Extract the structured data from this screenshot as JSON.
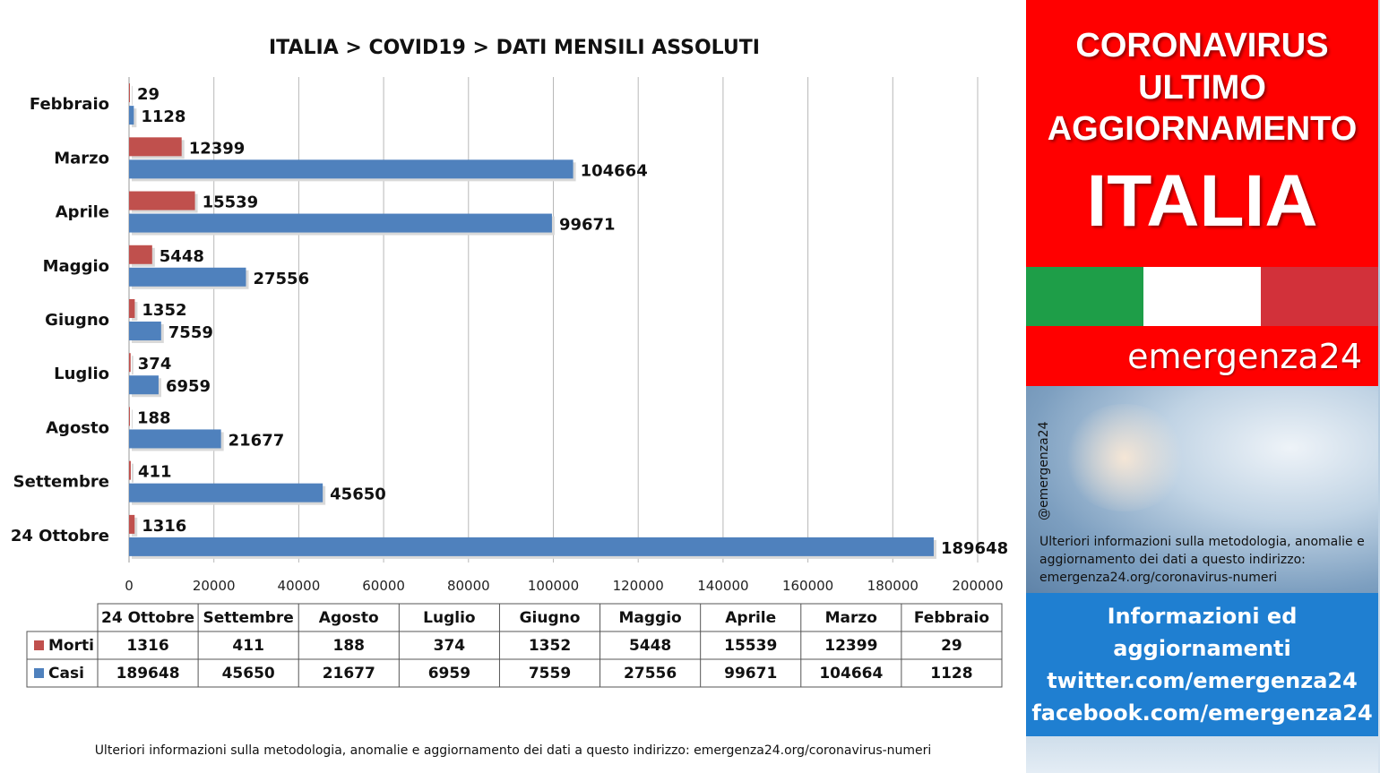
{
  "footer_note": "Ulteriori informazioni sulla metodologia, anomalie e aggiornamento dei dati a questo indirizzo: emergenza24.org/coronavirus-numeri",
  "side_panel": {
    "headline": [
      "CORONAVIRUS",
      "ULTIMO",
      "AGGIORNAMENTO",
      "ITALIA"
    ],
    "flag_colors": [
      "#1e9e48",
      "#ffffff",
      "#d2313a"
    ],
    "brand": "emergenza24",
    "handle": "@emergenza24",
    "note": "Ulteriori informazioni sulla metodologia, anomalie e aggiornamento dei dati a questo indirizzo: emergenza24.org/coronavirus-numeri",
    "info_lines": [
      "Informazioni ed",
      "aggiornamenti",
      "twitter.com/emergenza24",
      "facebook.com/emergenza24"
    ]
  },
  "chart_data": {
    "type": "bar",
    "orientation": "horizontal",
    "title": "ITALIA >  COVID19 > DATI MENSILI  ASSOLUTI",
    "categories": [
      "Febbraio",
      "Marzo",
      "Aprile",
      "Maggio",
      "Giugno",
      "Luglio",
      "Agosto",
      "Settembre",
      "24 Ottobre"
    ],
    "series": [
      {
        "name": "Morti",
        "color": "#c0504d",
        "values": [
          29,
          12399,
          15539,
          5448,
          1352,
          374,
          188,
          411,
          1316
        ]
      },
      {
        "name": "Casi",
        "color": "#4f81bd",
        "values": [
          1128,
          104664,
          99671,
          27556,
          7559,
          6959,
          21677,
          45650,
          189648
        ]
      }
    ],
    "xlim": [
      0,
      200000
    ],
    "xticks": [
      "0",
      "20000",
      "40000",
      "60000",
      "80000",
      "100000",
      "120000",
      "140000",
      "160000",
      "180000",
      "200000"
    ],
    "grid": true,
    "data_table": {
      "columns": [
        "24 Ottobre",
        "Settembre",
        "Agosto",
        "Luglio",
        "Giugno",
        "Maggio",
        "Aprile",
        "Marzo",
        "Febbraio"
      ],
      "rows": [
        {
          "label": "Morti",
          "color": "#c0504d",
          "values": [
            "1316",
            "411",
            "188",
            "374",
            "1352",
            "5448",
            "15539",
            "12399",
            "29"
          ]
        },
        {
          "label": "Casi",
          "color": "#4f81bd",
          "values": [
            "189648",
            "45650",
            "21677",
            "6959",
            "7559",
            "27556",
            "99671",
            "104664",
            "1128"
          ]
        }
      ]
    }
  }
}
